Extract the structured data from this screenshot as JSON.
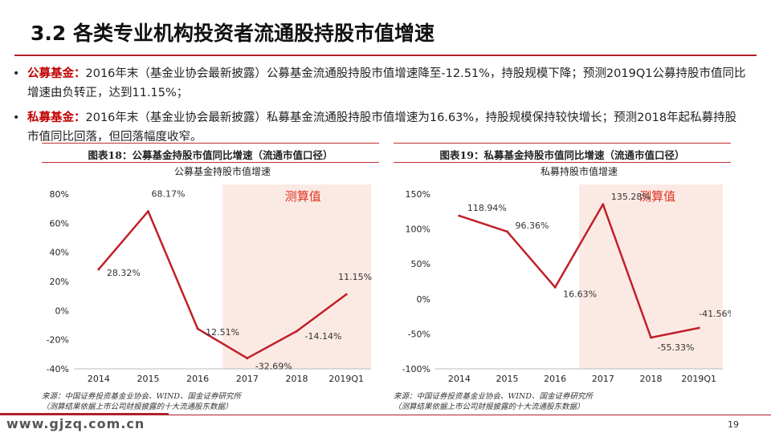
{
  "slide": {
    "title": "3.2 各类专业机构投资者流通股持股市值增速",
    "page_number": "19",
    "watermark": "www.gjzq.com.cn"
  },
  "bullets": [
    {
      "label": "公募基金：",
      "text": "2016年末（基金业协会最新披露）公募基金流通股持股市值增速降至-12.51%，持股规模下降；预测2019Q1公募持股市值同比增速由负转正，达到11.15%；"
    },
    {
      "label": "私募基金：",
      "text": "2016年末（基金业协会最新披露）私募基金流通股持股市值增速为16.63%，持股规模保持较快增长；预测2018年起私募持股市值同比回落，但回落幅度收窄。"
    }
  ],
  "charts": [
    {
      "caption": "图表18：公募基金持股市值同比增速（流通市值口径）",
      "source_lines": [
        "来源：中国证券投资基金业协会、WIND、国金证券研究所",
        "（测算结果依据上市公司财报披露的十大流通股东数据）"
      ]
    },
    {
      "caption": "图表19：私募基金持股市值同比增速（流通市值口径）",
      "source_lines": [
        "来源：中国证券投资基金业协会、WIND、国金证券研究所",
        "（测算结果依据上市公司财报披露的十大流通股东数据）"
      ]
    }
  ],
  "chart_data": [
    {
      "type": "line",
      "title": "公募基金持股市值增速",
      "categories": [
        "2014",
        "2015",
        "2016",
        "2017",
        "2018",
        "2019Q1"
      ],
      "series": [
        {
          "values": [
            28.32,
            68.17,
            -12.51,
            -32.69,
            -14.14,
            11.15
          ]
        }
      ],
      "data_labels": [
        "28.32%",
        "68.17%",
        "-12.51%",
        "-32.69%",
        "-14.14%",
        "11.15%"
      ],
      "ylim": [
        -40,
        80
      ],
      "yticks": [
        -40,
        -20,
        0,
        20,
        40,
        60,
        80
      ],
      "ytick_labels": [
        "-40%",
        "-20%",
        "0%",
        "20%",
        "40%",
        "60%",
        "80%"
      ],
      "shaded_region": {
        "from": "2017",
        "to": "2019Q1",
        "label": "测算值"
      },
      "line_color": "#c0202a",
      "shade_color": "#fbeae4",
      "grid": false
    },
    {
      "type": "line",
      "title": "私募持股市值增速",
      "categories": [
        "2014",
        "2015",
        "2016",
        "2017",
        "2018",
        "2019Q1"
      ],
      "series": [
        {
          "values": [
            118.94,
            96.36,
            16.63,
            135.28,
            -55.33,
            -41.56
          ]
        }
      ],
      "data_labels": [
        "118.94%",
        "96.36%",
        "16.63%",
        "135.28%",
        "-55.33%",
        "-41.56%"
      ],
      "ylim": [
        -100,
        150
      ],
      "yticks": [
        -100,
        -50,
        0,
        50,
        100,
        150
      ],
      "ytick_labels": [
        "-100%",
        "-50%",
        "0%",
        "50%",
        "100%",
        "150%"
      ],
      "shaded_region": {
        "from": "2017",
        "to": "2019Q1",
        "label": "测算值"
      },
      "line_color": "#c0202a",
      "shade_color": "#fbeae4",
      "grid": false
    }
  ]
}
